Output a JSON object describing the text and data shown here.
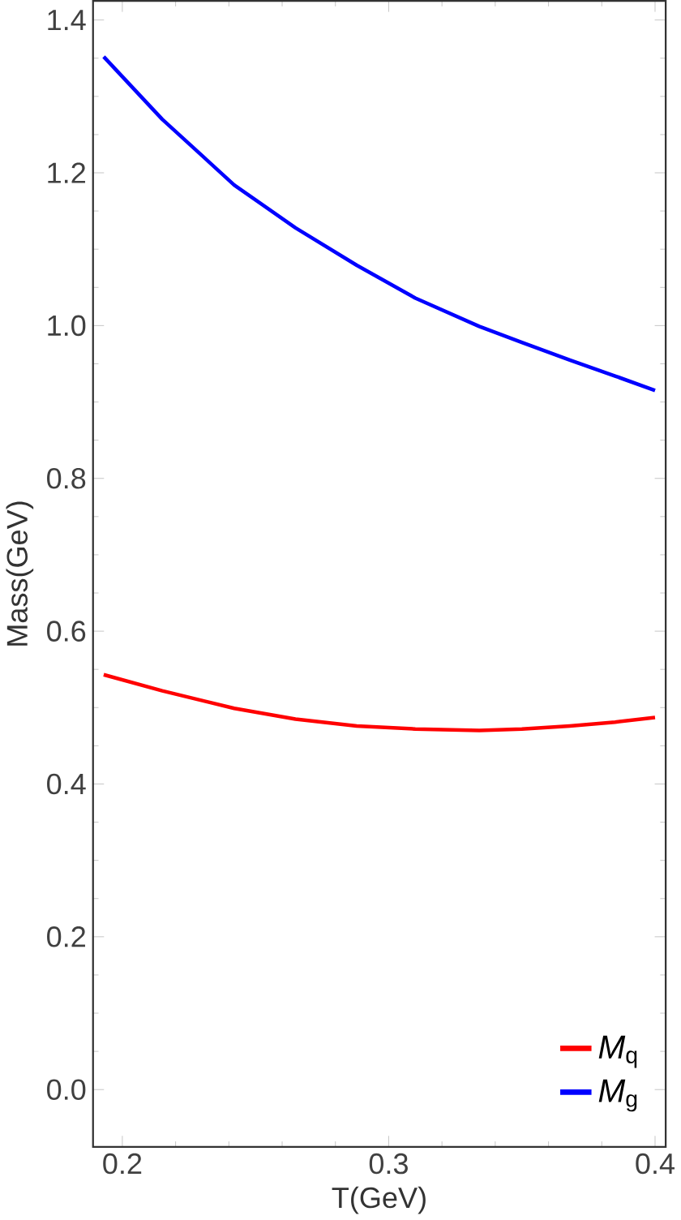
{
  "chart_data": {
    "type": "line",
    "xlabel": "T(GeV)",
    "ylabel": "Mass(GeV)",
    "x": [
      0.193,
      0.215,
      0.242,
      0.265,
      0.288,
      0.31,
      0.334,
      0.35,
      0.368,
      0.385,
      0.4
    ],
    "series": [
      {
        "name": "*M*$_{q}$",
        "color": "#ff0000",
        "values": [
          0.543,
          0.522,
          0.499,
          0.485,
          0.476,
          0.472,
          0.47,
          0.472,
          0.476,
          0.481,
          0.487
        ]
      },
      {
        "name": "*M*$_{g}$",
        "color": "#0000ff",
        "values": [
          1.352,
          1.27,
          1.184,
          1.128,
          1.079,
          1.036,
          0.999,
          0.978,
          0.955,
          0.934,
          0.915
        ]
      }
    ],
    "xlim": [
      0.189,
      0.404
    ],
    "ylim": [
      -0.075,
      1.425
    ],
    "xticks": [
      0.2,
      0.3,
      0.4
    ],
    "yticks": [
      {
        "value": 0,
        "label": "0.0"
      },
      0.2,
      0.4,
      0.6,
      0.8,
      {
        "value": 1,
        "label": "1.0"
      },
      1.2,
      1.4
    ],
    "legend": "bottom right",
    "grid": false,
    "marker": "none",
    "line_style": "solid"
  }
}
